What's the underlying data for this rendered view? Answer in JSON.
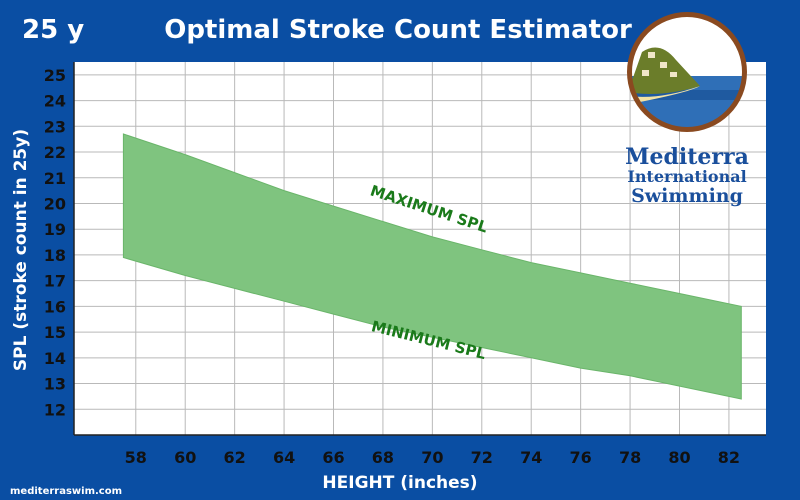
{
  "header": {
    "pool_length": "25 y",
    "title": "Optimal Stroke Count Estimator"
  },
  "brand": {
    "line1": "Mediterra",
    "line2": "International",
    "line3": "Swimming",
    "logo_icon": "mediterra-island-logo-icon"
  },
  "footer": {
    "url": "mediterraswim.com"
  },
  "colors": {
    "background": "#0a4ea3",
    "plot_bg": "#ffffff",
    "grid": "#b9b9b9",
    "band_fill": "#7fc47f",
    "band_stroke": "#6ab56a",
    "band_label": "#1a7a1a"
  },
  "chart_data": {
    "type": "area",
    "title": "Optimal Stroke Count Estimator",
    "xlabel": "HEIGHT (inches)",
    "ylabel": "SPL (stroke count in 25y)",
    "xlim": [
      55.5,
      83.5
    ],
    "ylim": [
      11,
      25.5
    ],
    "grid": true,
    "x_ticks": [
      58,
      60,
      62,
      64,
      66,
      68,
      70,
      72,
      74,
      76,
      78,
      80,
      82
    ],
    "y_ticks": [
      12,
      13,
      14,
      15,
      16,
      17,
      18,
      19,
      20,
      21,
      22,
      23,
      24,
      25
    ],
    "series": [
      {
        "name": "MAXIMUM SPL",
        "x": [
          57.5,
          60,
          62,
          64,
          66,
          68,
          70,
          72,
          74,
          76,
          78,
          80,
          82.5
        ],
        "values": [
          22.7,
          21.9,
          21.2,
          20.5,
          19.9,
          19.3,
          18.7,
          18.2,
          17.7,
          17.3,
          16.9,
          16.5,
          16.0
        ]
      },
      {
        "name": "MINIMUM SPL",
        "x": [
          57.5,
          60,
          62,
          64,
          66,
          68,
          70,
          72,
          74,
          76,
          78,
          80,
          82.5
        ],
        "values": [
          17.9,
          17.2,
          16.7,
          16.2,
          15.7,
          15.2,
          14.8,
          14.4,
          14.0,
          13.6,
          13.3,
          12.9,
          12.4
        ]
      }
    ],
    "annotations": [
      {
        "text": "MAXIMUM SPL",
        "x": 69.8,
        "y": 19.6,
        "angle": 18
      },
      {
        "text": "MINIMUM SPL",
        "x": 69.8,
        "y": 14.5,
        "angle": 14
      }
    ]
  }
}
